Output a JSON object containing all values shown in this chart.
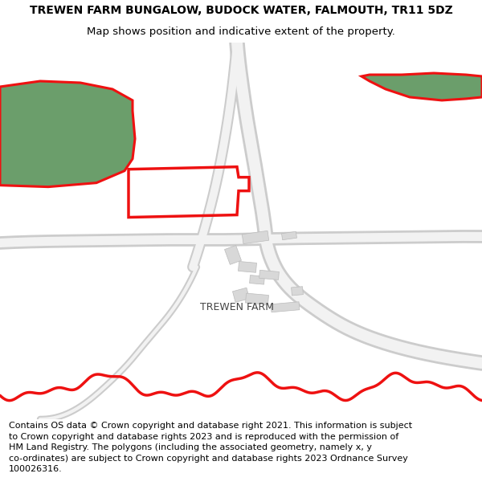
{
  "title_line1": "TREWEN FARM BUNGALOW, BUDOCK WATER, FALMOUTH, TR11 5DZ",
  "title_line2": "Map shows position and indicative extent of the property.",
  "label_farm": "TREWEN FARM",
  "footer_lines": [
    "Contains OS data © Crown copyright and database right 2021. This information is subject",
    "to Crown copyright and database rights 2023 and is reproduced with the permission of",
    "HM Land Registry. The polygons (including the associated geometry, namely x, y",
    "co-ordinates) are subject to Crown copyright and database rights 2023 Ordnance Survey",
    "100026316."
  ],
  "map_bg": "#ffffff",
  "green_fill": "#6b9e6b",
  "red_outline": "#ee1111",
  "road_outline": "#cccccc",
  "road_fill": "#f0f0f0",
  "building_color": "#d8d8d8",
  "title_fontsize": 10,
  "subtitle_fontsize": 9.5,
  "footer_fontsize": 8.0,
  "label_fontsize": 9
}
